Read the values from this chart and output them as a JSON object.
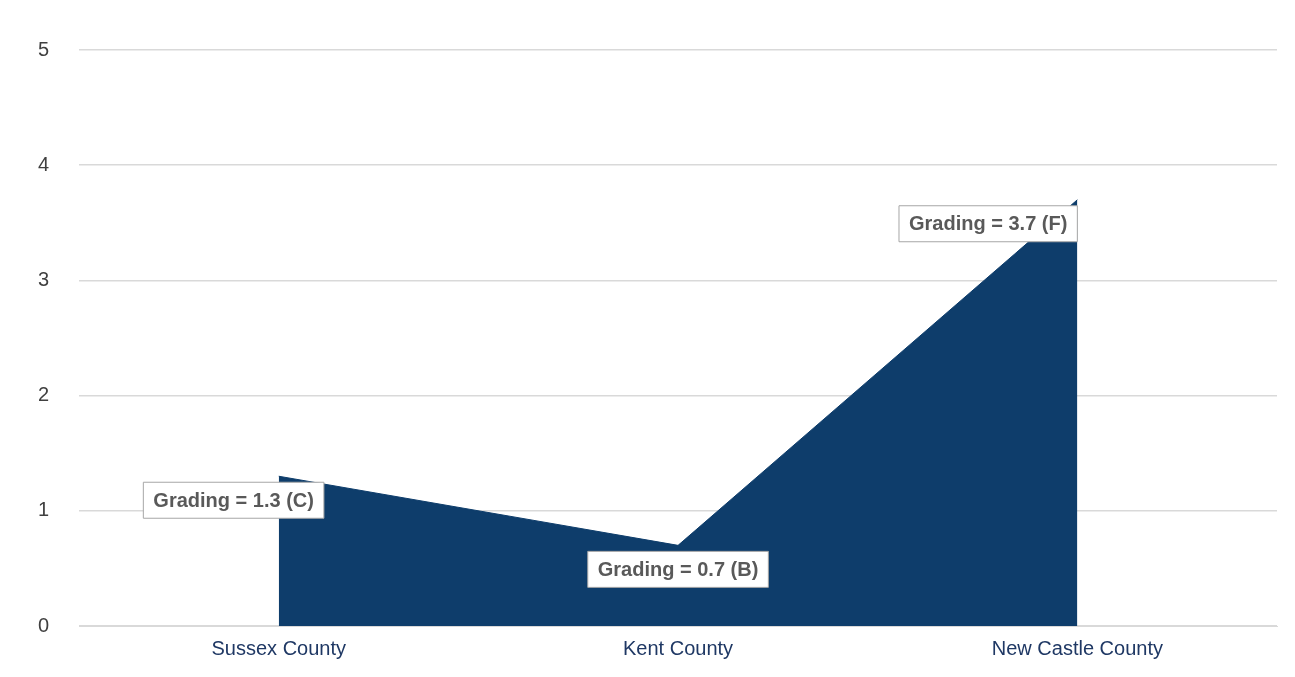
{
  "chart_data": {
    "type": "area",
    "categories": [
      "Sussex County",
      "Kent County",
      "New Castle County"
    ],
    "values": [
      1.3,
      0.7,
      3.7
    ],
    "color": "#0e3d6b",
    "ylim": [
      0,
      5
    ],
    "yticks": [
      0,
      1,
      2,
      3,
      4,
      5
    ],
    "grid": "y",
    "legend": false,
    "annotations": [
      {
        "text": "Grading = 1.3 (C)",
        "x": "Sussex County",
        "y": 1.3
      },
      {
        "text": "Grading = 0.7 (B)",
        "x": "Kent County",
        "y": 0.7
      },
      {
        "text": "Grading = 3.7 (F)",
        "x": "New Castle County",
        "y": 3.7
      }
    ]
  }
}
